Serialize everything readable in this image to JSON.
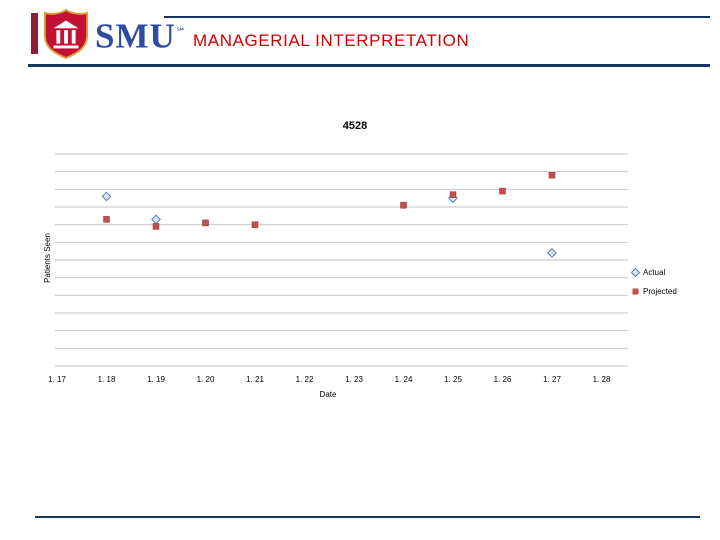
{
  "slide": {
    "logo_text": "SMU",
    "logo_sm": "℠",
    "title": "MANAGERIAL INTERPRETATION"
  },
  "colors": {
    "title_red": "#d00000",
    "rule_navy": "#17365d",
    "smu_shield_red": "#c41034",
    "smu_shield_gold": "#d9a13b",
    "smu_blue": "#2f4da0",
    "gridline_gray": "#c3c3c3",
    "actual_blue": "#4f81bd",
    "projected_red": "#c0504d"
  },
  "chart_data": {
    "type": "scatter",
    "title": "4528",
    "xlabel": "Date",
    "ylabel": "Patients Seen",
    "x_tick_labels": [
      "1. 17",
      "1. 18",
      "1. 19",
      "1. 20",
      "1. 21",
      "1. 22",
      "1. 23",
      "1. 24",
      "1. 25",
      "1. 26",
      "1. 27",
      "1. 28"
    ],
    "y_tick_labels_visible": false,
    "ylim": [
      0,
      12
    ],
    "gridline_count": 13,
    "grid": "horizontal",
    "legend_position": "right",
    "series": [
      {
        "name": "Actual",
        "marker": "diamond",
        "color": "#4f81bd",
        "fill": "#dbe5f1",
        "points": [
          {
            "x": "1. 18",
            "y": 9.6
          },
          {
            "x": "1. 19",
            "y": 8.3
          },
          {
            "x": "1. 25",
            "y": 9.5
          },
          {
            "x": "1. 27",
            "y": 6.4
          }
        ]
      },
      {
        "name": "Projected",
        "marker": "square",
        "color": "#c0504d",
        "fill": "#c0504d",
        "points": [
          {
            "x": "1. 18",
            "y": 8.3
          },
          {
            "x": "1. 19",
            "y": 7.9
          },
          {
            "x": "1. 20",
            "y": 8.1
          },
          {
            "x": "1. 21",
            "y": 8.0
          },
          {
            "x": "1. 24",
            "y": 9.1
          },
          {
            "x": "1. 25",
            "y": 9.7
          },
          {
            "x": "1. 26",
            "y": 9.9
          },
          {
            "x": "1. 27",
            "y": 10.8
          }
        ]
      }
    ]
  }
}
